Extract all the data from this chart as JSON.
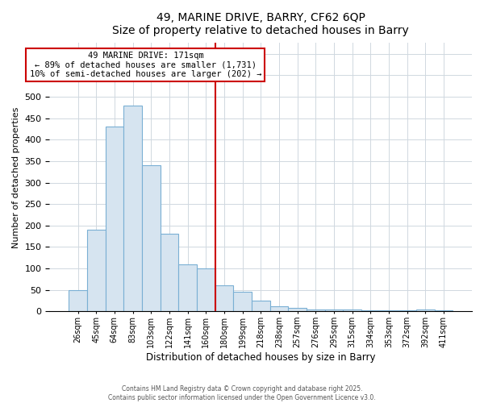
{
  "title": "49, MARINE DRIVE, BARRY, CF62 6QP",
  "subtitle": "Size of property relative to detached houses in Barry",
  "xlabel": "Distribution of detached houses by size in Barry",
  "ylabel": "Number of detached properties",
  "bar_labels": [
    "26sqm",
    "45sqm",
    "64sqm",
    "83sqm",
    "103sqm",
    "122sqm",
    "141sqm",
    "160sqm",
    "180sqm",
    "199sqm",
    "218sqm",
    "238sqm",
    "257sqm",
    "276sqm",
    "295sqm",
    "315sqm",
    "334sqm",
    "353sqm",
    "372sqm",
    "392sqm",
    "411sqm"
  ],
  "bar_values": [
    50,
    190,
    430,
    480,
    340,
    180,
    110,
    100,
    60,
    45,
    25,
    12,
    8,
    5,
    5,
    5,
    3,
    3,
    3,
    5,
    3
  ],
  "bar_color": "#d6e4f0",
  "bar_edge_color": "#7aafd4",
  "vline_color": "#cc0000",
  "annotation_title": "49 MARINE DRIVE: 171sqm",
  "annotation_line1": "← 89% of detached houses are smaller (1,731)",
  "annotation_line2": "10% of semi-detached houses are larger (202) →",
  "annotation_box_edge": "#cc0000",
  "ylim": [
    0,
    625
  ],
  "ytick_step": 50,
  "footer_line1": "Contains HM Land Registry data © Crown copyright and database right 2025.",
  "footer_line2": "Contains public sector information licensed under the Open Government Licence v3.0.",
  "background_color": "#ffffff",
  "grid_color": "#d0d8e0"
}
